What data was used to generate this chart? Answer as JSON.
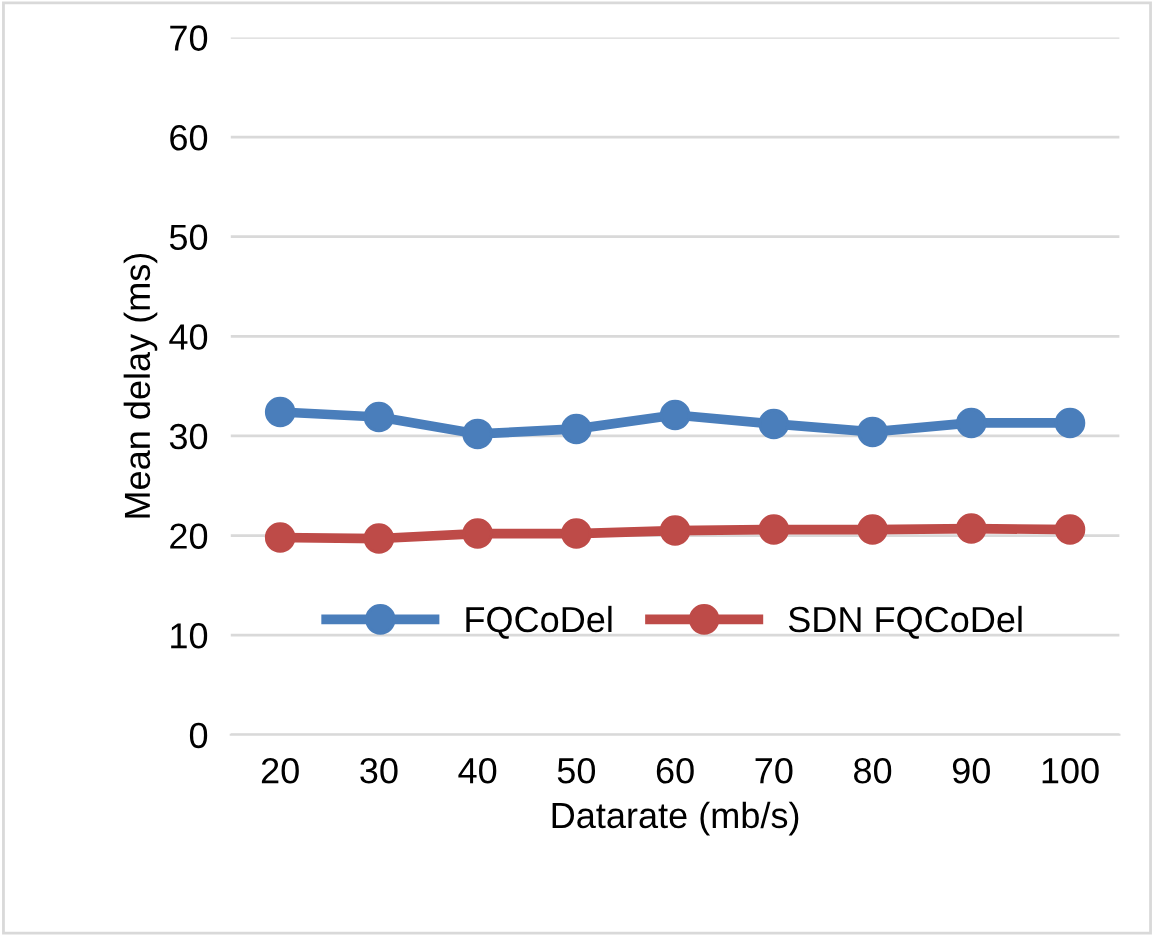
{
  "chart_data": {
    "type": "line",
    "xlabel": "Datarate (mb/s)",
    "ylabel": "Mean delay (ms)",
    "categories": [
      "20",
      "30",
      "40",
      "50",
      "60",
      "70",
      "80",
      "90",
      "100"
    ],
    "series": [
      {
        "name": "FQCoDel",
        "color": "#4a7ebb",
        "values": [
          32.4,
          31.9,
          30.2,
          30.7,
          32.1,
          31.2,
          30.4,
          31.3,
          31.3
        ]
      },
      {
        "name": "SDN FQCoDel",
        "color": "#be4b48",
        "values": [
          19.8,
          19.7,
          20.2,
          20.2,
          20.5,
          20.6,
          20.6,
          20.7,
          20.6
        ]
      }
    ],
    "ylim": [
      0,
      70
    ],
    "yticks": [
      0,
      10,
      20,
      30,
      40,
      50,
      60,
      70
    ],
    "grid": "y",
    "legend": "bottom",
    "marker": "circle",
    "line_style": "solid"
  }
}
